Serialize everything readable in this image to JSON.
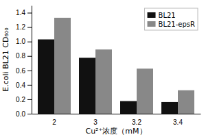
{
  "chart_data": {
    "type": "bar",
    "xlabel": "Cu²⁺浓度（mM）",
    "ylabel": "E.coli BL21 CD₆₀₀",
    "categories": [
      "2",
      "3",
      "3.2",
      "3.4"
    ],
    "series": [
      {
        "name": "BL21",
        "color": "#111111",
        "values": [
          1.03,
          0.775,
          0.175,
          0.162
        ]
      },
      {
        "name": "BL21-epsR",
        "color": "#888888",
        "values": [
          1.33,
          0.89,
          0.625,
          0.325
        ]
      }
    ],
    "ylim": [
      0,
      1.5
    ],
    "yticks": [
      {
        "value": 0.0,
        "label": "0.0"
      },
      0.2,
      0.4,
      0.6,
      0.8,
      {
        "value": 1.0,
        "label": "1.0"
      },
      1.2,
      1.4
    ],
    "grid": false,
    "legend": "upper right"
  }
}
